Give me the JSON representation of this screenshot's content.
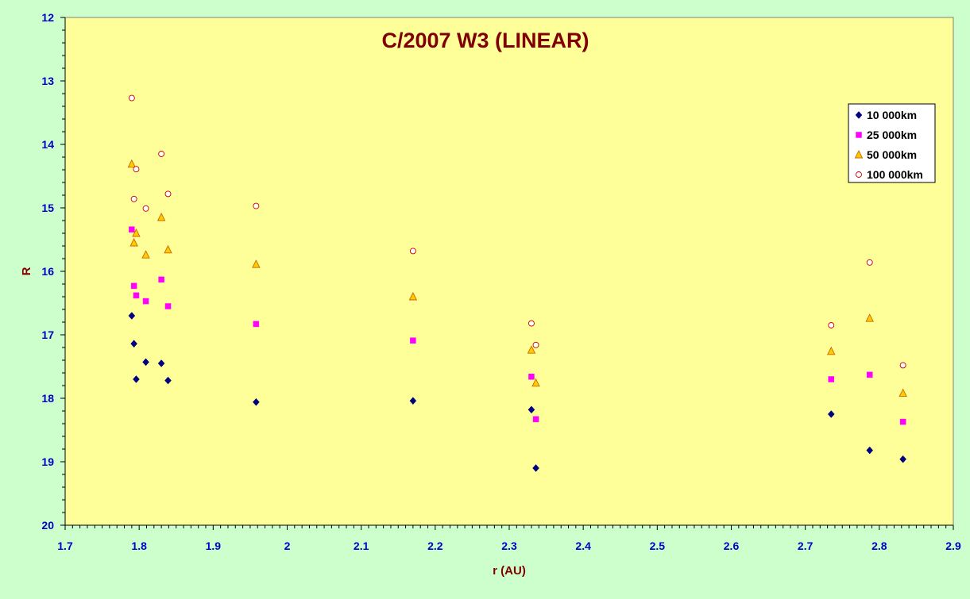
{
  "chart_data": {
    "type": "scatter",
    "title": "C/2007 W3 (LINEAR)",
    "xlabel": "r (AU)",
    "ylabel": "R",
    "xlim": [
      1.7,
      2.9
    ],
    "ylim": [
      12,
      20
    ],
    "y_inverted": true,
    "x_ticks": [
      "1.7",
      "1.8",
      "1.9",
      "2",
      "2.1",
      "2.2",
      "2.3",
      "2.4",
      "2.5",
      "2.6",
      "2.7",
      "2.8",
      "2.9"
    ],
    "y_ticks": [
      "12",
      "13",
      "14",
      "15",
      "16",
      "17",
      "18",
      "19",
      "20"
    ],
    "grid": false,
    "legend_position": "top-right",
    "colors": {
      "page_background": "#ccffcc",
      "plot_background": "#ffff99",
      "title": "#800000",
      "axis_text": "#0000cc",
      "axis_title": "#800000"
    },
    "series": [
      {
        "name": "10 000km",
        "marker": "diamond",
        "color": "#000080",
        "points": [
          [
            1.79,
            16.7
          ],
          [
            1.793,
            17.14
          ],
          [
            1.796,
            17.7
          ],
          [
            1.809,
            17.43
          ],
          [
            1.83,
            17.45
          ],
          [
            1.839,
            17.72
          ],
          [
            1.958,
            18.06
          ],
          [
            2.17,
            18.04
          ],
          [
            2.33,
            18.18
          ],
          [
            2.336,
            19.1
          ],
          [
            2.735,
            18.25
          ],
          [
            2.787,
            18.82
          ],
          [
            2.832,
            18.96
          ]
        ]
      },
      {
        "name": "25 000km",
        "marker": "square",
        "color": "#ff00ff",
        "points": [
          [
            1.79,
            15.34
          ],
          [
            1.793,
            16.23
          ],
          [
            1.796,
            16.38
          ],
          [
            1.809,
            16.47
          ],
          [
            1.83,
            16.13
          ],
          [
            1.839,
            16.55
          ],
          [
            1.958,
            16.83
          ],
          [
            2.17,
            17.09
          ],
          [
            2.33,
            17.66
          ],
          [
            2.336,
            18.33
          ],
          [
            2.735,
            17.7
          ],
          [
            2.787,
            17.63
          ],
          [
            2.832,
            18.37
          ]
        ]
      },
      {
        "name": "50 000km",
        "marker": "triangle",
        "color": "#ffcc00",
        "edge": "#cc6600",
        "points": [
          [
            1.79,
            14.31
          ],
          [
            1.793,
            15.55
          ],
          [
            1.796,
            15.4
          ],
          [
            1.809,
            15.74
          ],
          [
            1.83,
            15.15
          ],
          [
            1.839,
            15.66
          ],
          [
            1.958,
            15.89
          ],
          [
            2.17,
            16.4
          ],
          [
            2.33,
            17.24
          ],
          [
            2.336,
            17.76
          ],
          [
            2.735,
            17.26
          ],
          [
            2.787,
            16.74
          ],
          [
            2.832,
            17.92
          ]
        ]
      },
      {
        "name": "100 000km",
        "marker": "circle",
        "color": "#ffffff",
        "edge": "#cc0000",
        "points": [
          [
            1.79,
            13.27
          ],
          [
            1.793,
            14.86
          ],
          [
            1.796,
            14.39
          ],
          [
            1.809,
            15.01
          ],
          [
            1.83,
            14.15
          ],
          [
            1.839,
            14.78
          ],
          [
            1.958,
            14.97
          ],
          [
            2.17,
            15.68
          ],
          [
            2.33,
            16.82
          ],
          [
            2.336,
            17.16
          ],
          [
            2.735,
            16.85
          ],
          [
            2.787,
            15.86
          ],
          [
            2.832,
            17.48
          ]
        ]
      }
    ]
  }
}
